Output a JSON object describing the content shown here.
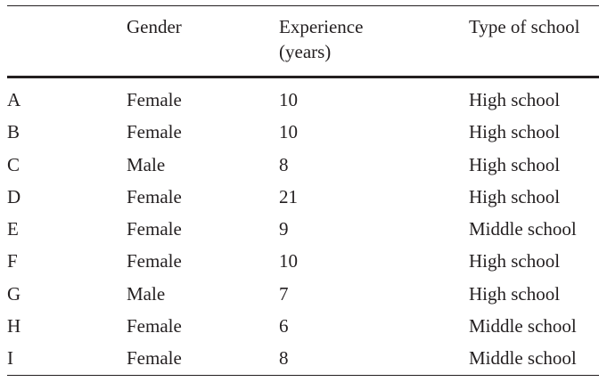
{
  "table": {
    "headers": [
      {
        "lines": [
          ""
        ]
      },
      {
        "lines": [
          "Gender"
        ]
      },
      {
        "lines": [
          "Experience",
          "(years)"
        ]
      },
      {
        "lines": [
          "Type of school"
        ]
      }
    ],
    "rows": [
      [
        "A",
        "Female",
        "10",
        "High school"
      ],
      [
        "B",
        "Female",
        "10",
        "High school"
      ],
      [
        "C",
        "Male",
        "8",
        "High school"
      ],
      [
        "D",
        "Female",
        "21",
        "High school"
      ],
      [
        "E",
        "Female",
        "9",
        "Middle school"
      ],
      [
        "F",
        "Female",
        "10",
        "High school"
      ],
      [
        "G",
        "Male",
        "7",
        "High school"
      ],
      [
        "H",
        "Female",
        "6",
        "Middle school"
      ],
      [
        "I",
        "Female",
        "8",
        "Middle school"
      ]
    ]
  }
}
